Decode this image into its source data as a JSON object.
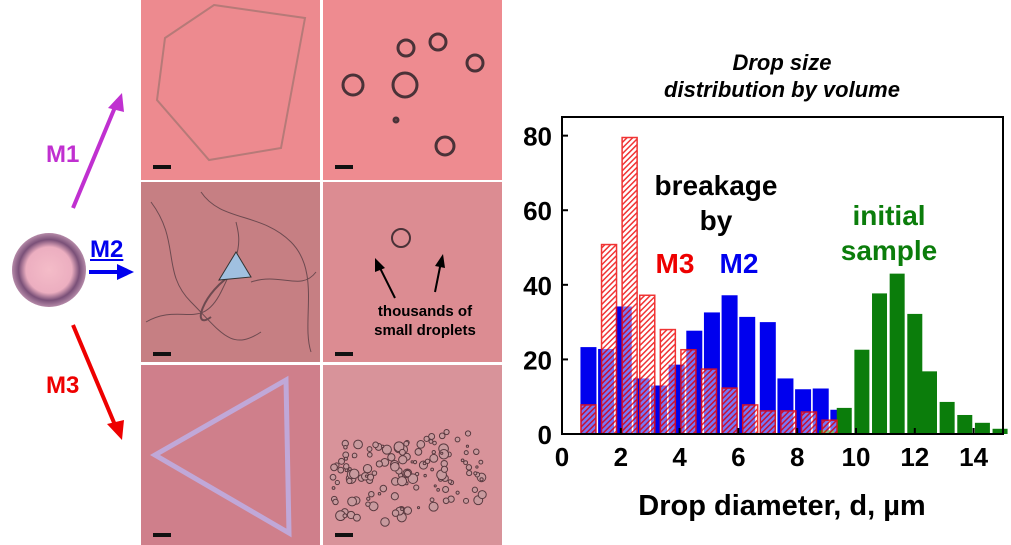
{
  "left_panel": {
    "routes": [
      {
        "label": "M1",
        "color": "#c030d0"
      },
      {
        "label": "M2",
        "color": "#0000ee"
      },
      {
        "label": "M3",
        "color": "#ee0000"
      }
    ],
    "annotation": "thousands of small droplets",
    "annotation_lines": [
      "thousands of",
      "small droplets"
    ],
    "panel_background": "#e9848a"
  },
  "chart_data": {
    "type": "bar",
    "title": "Drop size distribution by volume",
    "title_lines": [
      "Drop size",
      "distribution by volume"
    ],
    "xlabel": "Drop diameter, d, µm",
    "ylabel": "",
    "xlim": [
      0,
      15
    ],
    "ylim": [
      0,
      85
    ],
    "xticks": [
      "0",
      "2",
      "4",
      "6",
      "8",
      "10",
      "12",
      "14"
    ],
    "yticks": [
      "0",
      "20",
      "40",
      "60",
      "80"
    ],
    "grid": false,
    "annotations": {
      "breakage_lines": [
        "breakage",
        "by"
      ],
      "m3": "M3",
      "m2": "M2",
      "initial_lines": [
        "initial",
        "sample"
      ]
    },
    "series": [
      {
        "name": "M2",
        "color": "#0000ee",
        "pattern": "solid",
        "x": [
          0.9,
          1.5,
          2.1,
          2.7,
          3.3,
          3.9,
          4.5,
          5.1,
          5.7,
          6.3,
          7.0,
          7.6,
          8.2,
          8.8,
          9.4
        ],
        "values": [
          23.3,
          22.8,
          34.2,
          14.9,
          13,
          18.6,
          27.7,
          32.6,
          37.2,
          31.4,
          30,
          14.9,
          12,
          12.2,
          6.5
        ]
      },
      {
        "name": "M3",
        "color": "#ee1111",
        "pattern": "hatched",
        "x": [
          0.9,
          1.6,
          2.3,
          2.9,
          3.6,
          4.3,
          5.0,
          5.7,
          6.4,
          7.0,
          7.7,
          8.4,
          9.1
        ],
        "values": [
          7.8,
          50.8,
          79.5,
          37.2,
          28,
          22.6,
          17.4,
          12.3,
          7.8,
          6.2,
          6.2,
          5.9,
          3.7
        ]
      },
      {
        "name": "initial sample",
        "color": "#0b7d0b",
        "pattern": "solid",
        "x": [
          9.0,
          9.6,
          10.2,
          10.8,
          11.4,
          12.0,
          12.5,
          13.1,
          13.7,
          14.3,
          14.9
        ],
        "values": [
          1,
          7,
          22.6,
          37.7,
          43,
          32.2,
          16.8,
          8.6,
          5.1,
          3,
          1.4
        ]
      }
    ]
  }
}
